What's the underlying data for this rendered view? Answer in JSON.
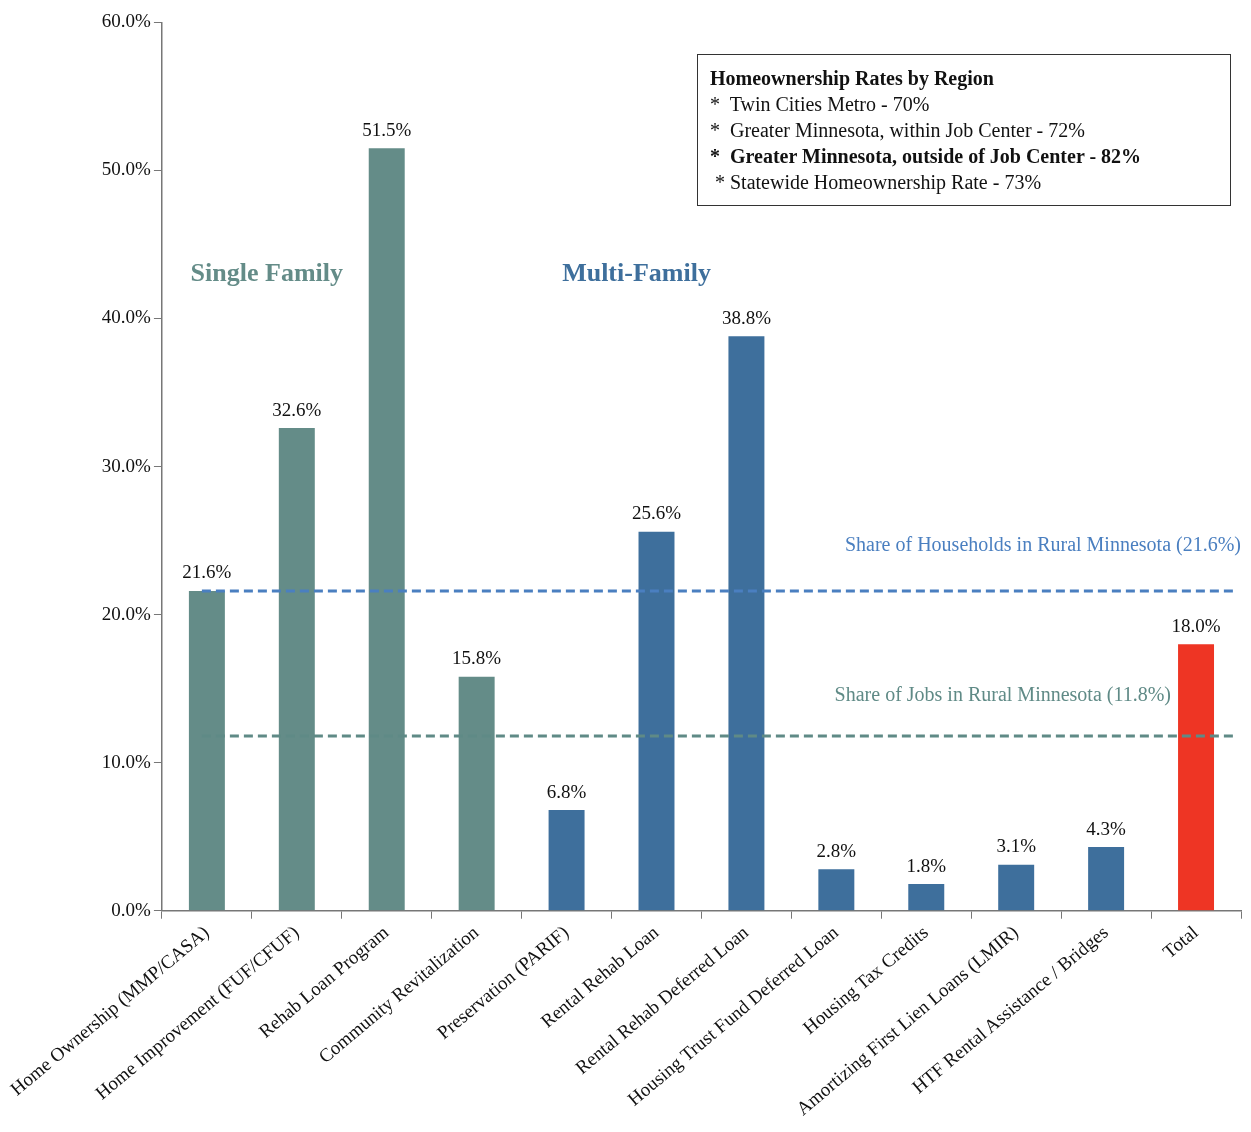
{
  "chart_data": {
    "type": "bar",
    "categories": [
      "Home Ownership (MMP/CASA)",
      "Home Improvement (FUF/CFUF)",
      "Rehab Loan Program",
      "Community Revitalization",
      "Preservation (PARIF)",
      "Rental Rehab Loan",
      "Rental Rehab Deferred Loan",
      "Housing Trust Fund Deferred Loan",
      "Housing Tax Credits",
      "Amortizing First Lien Loans (LMIR)",
      "HTF Rental Assistance / Bridges",
      "Total"
    ],
    "values": [
      21.6,
      32.6,
      51.5,
      15.8,
      6.8,
      25.6,
      38.8,
      2.8,
      1.8,
      3.1,
      4.3,
      18.0
    ],
    "colors": [
      "#648c88",
      "#648c88",
      "#648c88",
      "#648c88",
      "#3e6f9c",
      "#3e6f9c",
      "#3e6f9c",
      "#3e6f9c",
      "#3e6f9c",
      "#3e6f9c",
      "#3e6f9c",
      "#ee3524"
    ],
    "value_labels": [
      "21.6%",
      "32.6%",
      "51.5%",
      "15.8%",
      "6.8%",
      "25.6%",
      "38.8%",
      "2.8%",
      "1.8%",
      "3.1%",
      "4.3%",
      "18.0%"
    ],
    "ylim": [
      0,
      60
    ],
    "yticks": [
      {
        "value": 0,
        "label": "0.0%"
      },
      {
        "value": 10,
        "label": "10.0%"
      },
      {
        "value": 20,
        "label": "20.0%"
      },
      {
        "value": 30,
        "label": "30.0%"
      },
      {
        "value": 40,
        "label": "40.0%"
      },
      {
        "value": 50,
        "label": "50.0%"
      },
      {
        "value": 60,
        "label": "60.0%"
      }
    ],
    "ref_lines": [
      {
        "axis": "y",
        "value": 21.6,
        "label": "Share of Households in Rural Minnesota (21.6%)",
        "color": "#4a7fc0",
        "line_style": "dashed"
      },
      {
        "axis": "y",
        "value": 11.8,
        "label": "Share of Jobs in Rural Minnesota (11.8%)",
        "color": "#5f8a86",
        "line_style": "dashed"
      }
    ],
    "annotations": [
      "Single Family",
      "Multi-Family",
      "Homeownership Rates by Region",
      "*  Twin Cities Metro - 70%",
      "*  Greater Minnesota, within Job Center - 72%",
      "*  Greater Minnesota, outside of Job Center - 82%",
      " * Statewide Homeownership Rate - 73%"
    ]
  }
}
